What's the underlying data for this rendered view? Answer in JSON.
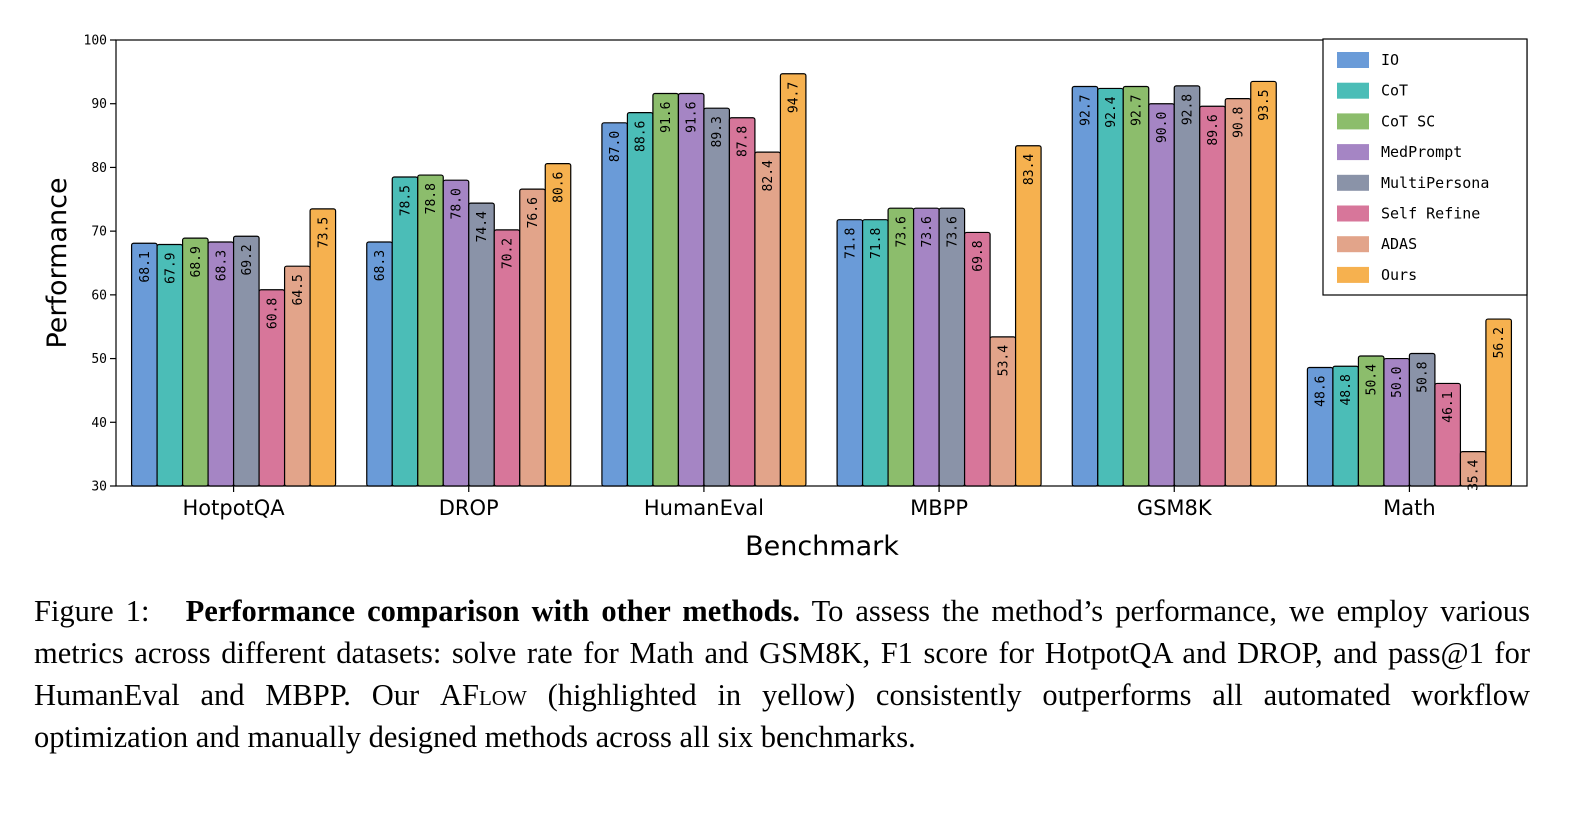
{
  "chart_data": {
    "type": "bar",
    "xlabel": "Benchmark",
    "ylabel": "Performance",
    "ylim": [
      30,
      100
    ],
    "yticks": [
      30,
      40,
      50,
      60,
      70,
      80,
      90,
      100
    ],
    "grid": false,
    "legend_position": "top-right",
    "categories": [
      "HotpotQA",
      "DROP",
      "HumanEval",
      "MBPP",
      "GSM8K",
      "Math"
    ],
    "series": [
      {
        "name": "IO",
        "color": "#6a9bd8",
        "values": [
          68.1,
          68.3,
          87.0,
          71.8,
          92.7,
          48.6
        ]
      },
      {
        "name": "CoT",
        "color": "#4bbdb7",
        "values": [
          67.9,
          78.5,
          88.6,
          71.8,
          92.4,
          48.8
        ]
      },
      {
        "name": "CoT SC",
        "color": "#8cbd6c",
        "values": [
          68.9,
          78.8,
          91.6,
          73.6,
          92.7,
          50.4
        ]
      },
      {
        "name": "MedPrompt",
        "color": "#a585c4",
        "values": [
          68.3,
          78.0,
          91.6,
          73.6,
          90.0,
          50.0
        ]
      },
      {
        "name": "MultiPersona",
        "color": "#8a93a8",
        "values": [
          69.2,
          74.4,
          89.3,
          73.6,
          92.8,
          50.8
        ]
      },
      {
        "name": "Self Refine",
        "color": "#d7769a",
        "values": [
          60.8,
          70.2,
          87.8,
          69.8,
          89.6,
          46.1
        ]
      },
      {
        "name": "ADAS",
        "color": "#e2a48a",
        "values": [
          64.5,
          76.6,
          82.4,
          53.4,
          90.8,
          35.4
        ]
      },
      {
        "name": "Ours",
        "color": "#f6b14f",
        "values": [
          73.5,
          80.6,
          94.7,
          83.4,
          93.5,
          56.2
        ]
      }
    ]
  },
  "caption": {
    "label": "Figure 1:",
    "bold": "Performance comparison with other methods.",
    "text_before_aflow": " To assess the method’s performance, we employ various metrics across different datasets: solve rate for Math and GSM8K, F1 score for HotpotQA and DROP, and pass@1 for HumanEval and MBPP. Our ",
    "aflow": "AFlow",
    "text_after_aflow": " (highlighted in yellow) consistently outperforms all automated workflow optimization and manually designed methods across all six benchmarks."
  }
}
